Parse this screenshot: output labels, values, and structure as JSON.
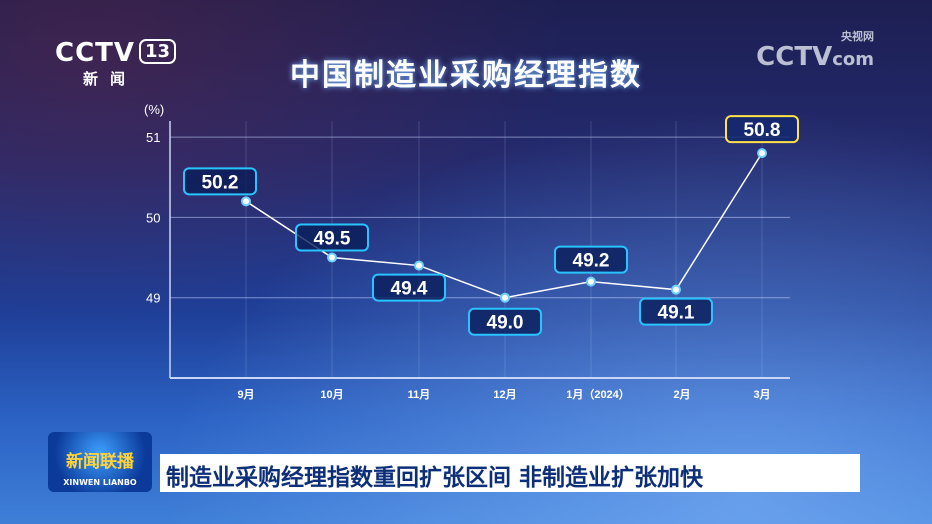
{
  "channel_logo": {
    "brand": "CCTV",
    "channel": "13",
    "subtitle": "新闻"
  },
  "watermark": {
    "brand": "CCTV",
    "domain": "com",
    "label": "央视网"
  },
  "program_logo": {
    "name_cn": "新闻联播",
    "name_pinyin": "XINWEN LIANBO"
  },
  "headline": "制造业采购经理指数重回扩张区间 非制造业扩张加快",
  "chart_data": {
    "type": "line",
    "title": "中国制造业采购经理指数",
    "ylabel": "(%)",
    "ylim": [
      48,
      51.2
    ],
    "yticks": [
      49,
      50,
      51
    ],
    "categories": [
      "9月",
      "10月",
      "11月",
      "12月",
      "1月（2024）",
      "2月",
      "3月"
    ],
    "values": [
      50.2,
      49.5,
      49.4,
      49.0,
      49.2,
      49.1,
      50.8
    ],
    "data_labels": [
      "50.2",
      "49.5",
      "49.4",
      "49.0",
      "49.2",
      "49.1",
      "50.8"
    ],
    "grid": true,
    "colors": {
      "line": "#ffffff",
      "label_border": "#29c4ff",
      "highlight_border": "#ffe14a"
    }
  }
}
